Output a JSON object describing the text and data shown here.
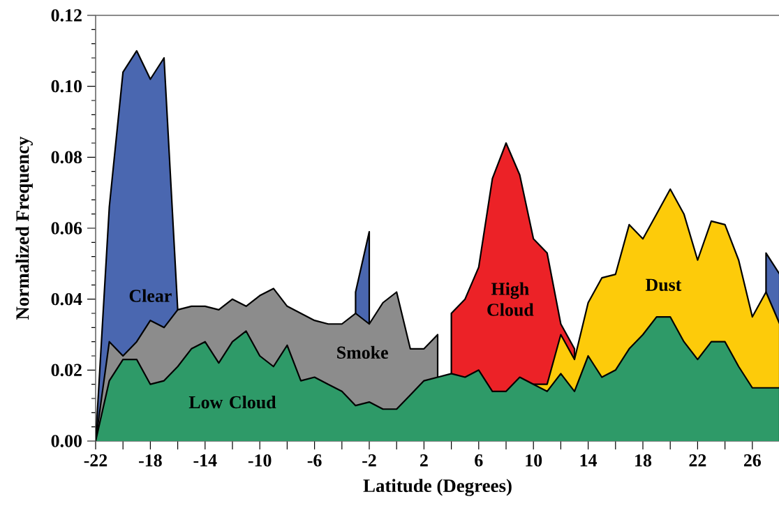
{
  "chart_data": {
    "type": "area",
    "xlabel": "Latitude (Degrees)",
    "ylabel": "Normalized Frequency",
    "x": [
      -22,
      -21,
      -20,
      -19,
      -18,
      -17,
      -16,
      -15,
      -14,
      -13,
      -12,
      -11,
      -10,
      -9,
      -8,
      -7,
      -6,
      -5,
      -4,
      -3,
      -2,
      -1,
      0,
      1,
      2,
      3,
      4,
      5,
      6,
      7,
      8,
      9,
      10,
      11,
      12,
      13,
      14,
      15,
      16,
      17,
      18,
      19,
      20,
      21,
      22,
      23,
      24,
      25,
      26,
      27,
      28
    ],
    "series": [
      {
        "name": "Clear",
        "color": "#4a67b0",
        "values": [
          0,
          0.066,
          0.104,
          0.11,
          0.102,
          0.108,
          0.037,
          null,
          null,
          null,
          null,
          null,
          null,
          null,
          null,
          null,
          null,
          null,
          null,
          0.042,
          0.059,
          null,
          null,
          null,
          null,
          null,
          null,
          null,
          null,
          null,
          null,
          null,
          null,
          null,
          null,
          null,
          null,
          null,
          null,
          null,
          null,
          null,
          null,
          null,
          null,
          null,
          null,
          null,
          null,
          0.053,
          0.047
        ]
      },
      {
        "name": "Smoke",
        "color": "#8c8c8c",
        "values": [
          0,
          0.028,
          0.024,
          0.028,
          0.034,
          0.032,
          0.037,
          0.038,
          0.038,
          0.037,
          0.04,
          0.038,
          0.041,
          0.043,
          0.038,
          0.036,
          0.034,
          0.033,
          0.033,
          0.036,
          0.033,
          0.039,
          0.042,
          0.026,
          0.026,
          0.03,
          null,
          null,
          null,
          null,
          null,
          null,
          null,
          null,
          null,
          null,
          null,
          null,
          null,
          null,
          null,
          null,
          null,
          null,
          null,
          null,
          null,
          null,
          null,
          null,
          null
        ]
      },
      {
        "name": "High Cloud",
        "color": "#ec2227",
        "values": [
          null,
          null,
          null,
          null,
          null,
          null,
          null,
          null,
          null,
          null,
          null,
          null,
          null,
          null,
          null,
          null,
          null,
          null,
          null,
          null,
          null,
          null,
          null,
          null,
          null,
          null,
          0.036,
          0.04,
          0.049,
          0.074,
          0.084,
          0.075,
          0.057,
          0.053,
          0.033,
          0.026,
          null,
          null,
          null,
          null,
          null,
          null,
          null,
          null,
          null,
          null,
          null,
          null,
          null,
          null,
          null
        ]
      },
      {
        "name": "Dust",
        "color": "#fdcb0a",
        "values": [
          null,
          null,
          null,
          null,
          null,
          null,
          null,
          null,
          null,
          null,
          null,
          null,
          null,
          null,
          null,
          null,
          null,
          null,
          null,
          null,
          null,
          null,
          null,
          null,
          null,
          null,
          null,
          null,
          null,
          null,
          null,
          null,
          0.016,
          0.016,
          0.03,
          0.023,
          0.039,
          0.046,
          0.047,
          0.061,
          0.057,
          0.064,
          0.071,
          0.064,
          0.051,
          0.062,
          0.061,
          0.051,
          0.035,
          0.042,
          0.033
        ]
      },
      {
        "name": "Low Cloud",
        "color": "#2e9a68",
        "values": [
          0,
          0.017,
          0.023,
          0.023,
          0.016,
          0.017,
          0.021,
          0.026,
          0.028,
          0.022,
          0.028,
          0.031,
          0.024,
          0.021,
          0.027,
          0.017,
          0.018,
          0.016,
          0.014,
          0.01,
          0.011,
          0.009,
          0.009,
          0.013,
          0.017,
          0.018,
          0.019,
          0.018,
          0.02,
          0.014,
          0.014,
          0.018,
          0.016,
          0.014,
          0.019,
          0.014,
          0.024,
          0.018,
          0.02,
          0.026,
          0.03,
          0.035,
          0.035,
          0.028,
          0.023,
          0.028,
          0.028,
          0.021,
          0.015,
          0.015,
          0.015
        ]
      }
    ],
    "xlim": [
      -22,
      28
    ],
    "ylim": [
      0,
      0.12
    ],
    "xticks": [
      -22,
      {
        "value": -20,
        "label": null
      },
      -18,
      {
        "value": -16,
        "label": null
      },
      -14,
      {
        "value": -12,
        "label": null
      },
      -10,
      {
        "value": -8,
        "label": null
      },
      -6,
      {
        "value": -4,
        "label": null
      },
      -2,
      {
        "value": 0,
        "label": null
      },
      2,
      {
        "value": 4,
        "label": null
      },
      6,
      {
        "value": 8,
        "label": null
      },
      10,
      {
        "value": 12,
        "label": null
      },
      14,
      {
        "value": 16,
        "label": null
      },
      18,
      {
        "value": 20,
        "label": null
      },
      22,
      {
        "value": 24,
        "label": null
      },
      26,
      {
        "value": 28,
        "label": null
      }
    ],
    "yticks": [
      {
        "value": 0,
        "label": "0.00"
      },
      {
        "value": 0.02,
        "label": "0.02"
      },
      {
        "value": 0.04,
        "label": "0.04"
      },
      {
        "value": 0.06,
        "label": "0.06"
      },
      {
        "value": 0.08,
        "label": "0.08"
      },
      {
        "value": 0.1,
        "label": "0.10"
      },
      {
        "value": 0.12,
        "label": "0.12"
      }
    ],
    "grid": false
  }
}
